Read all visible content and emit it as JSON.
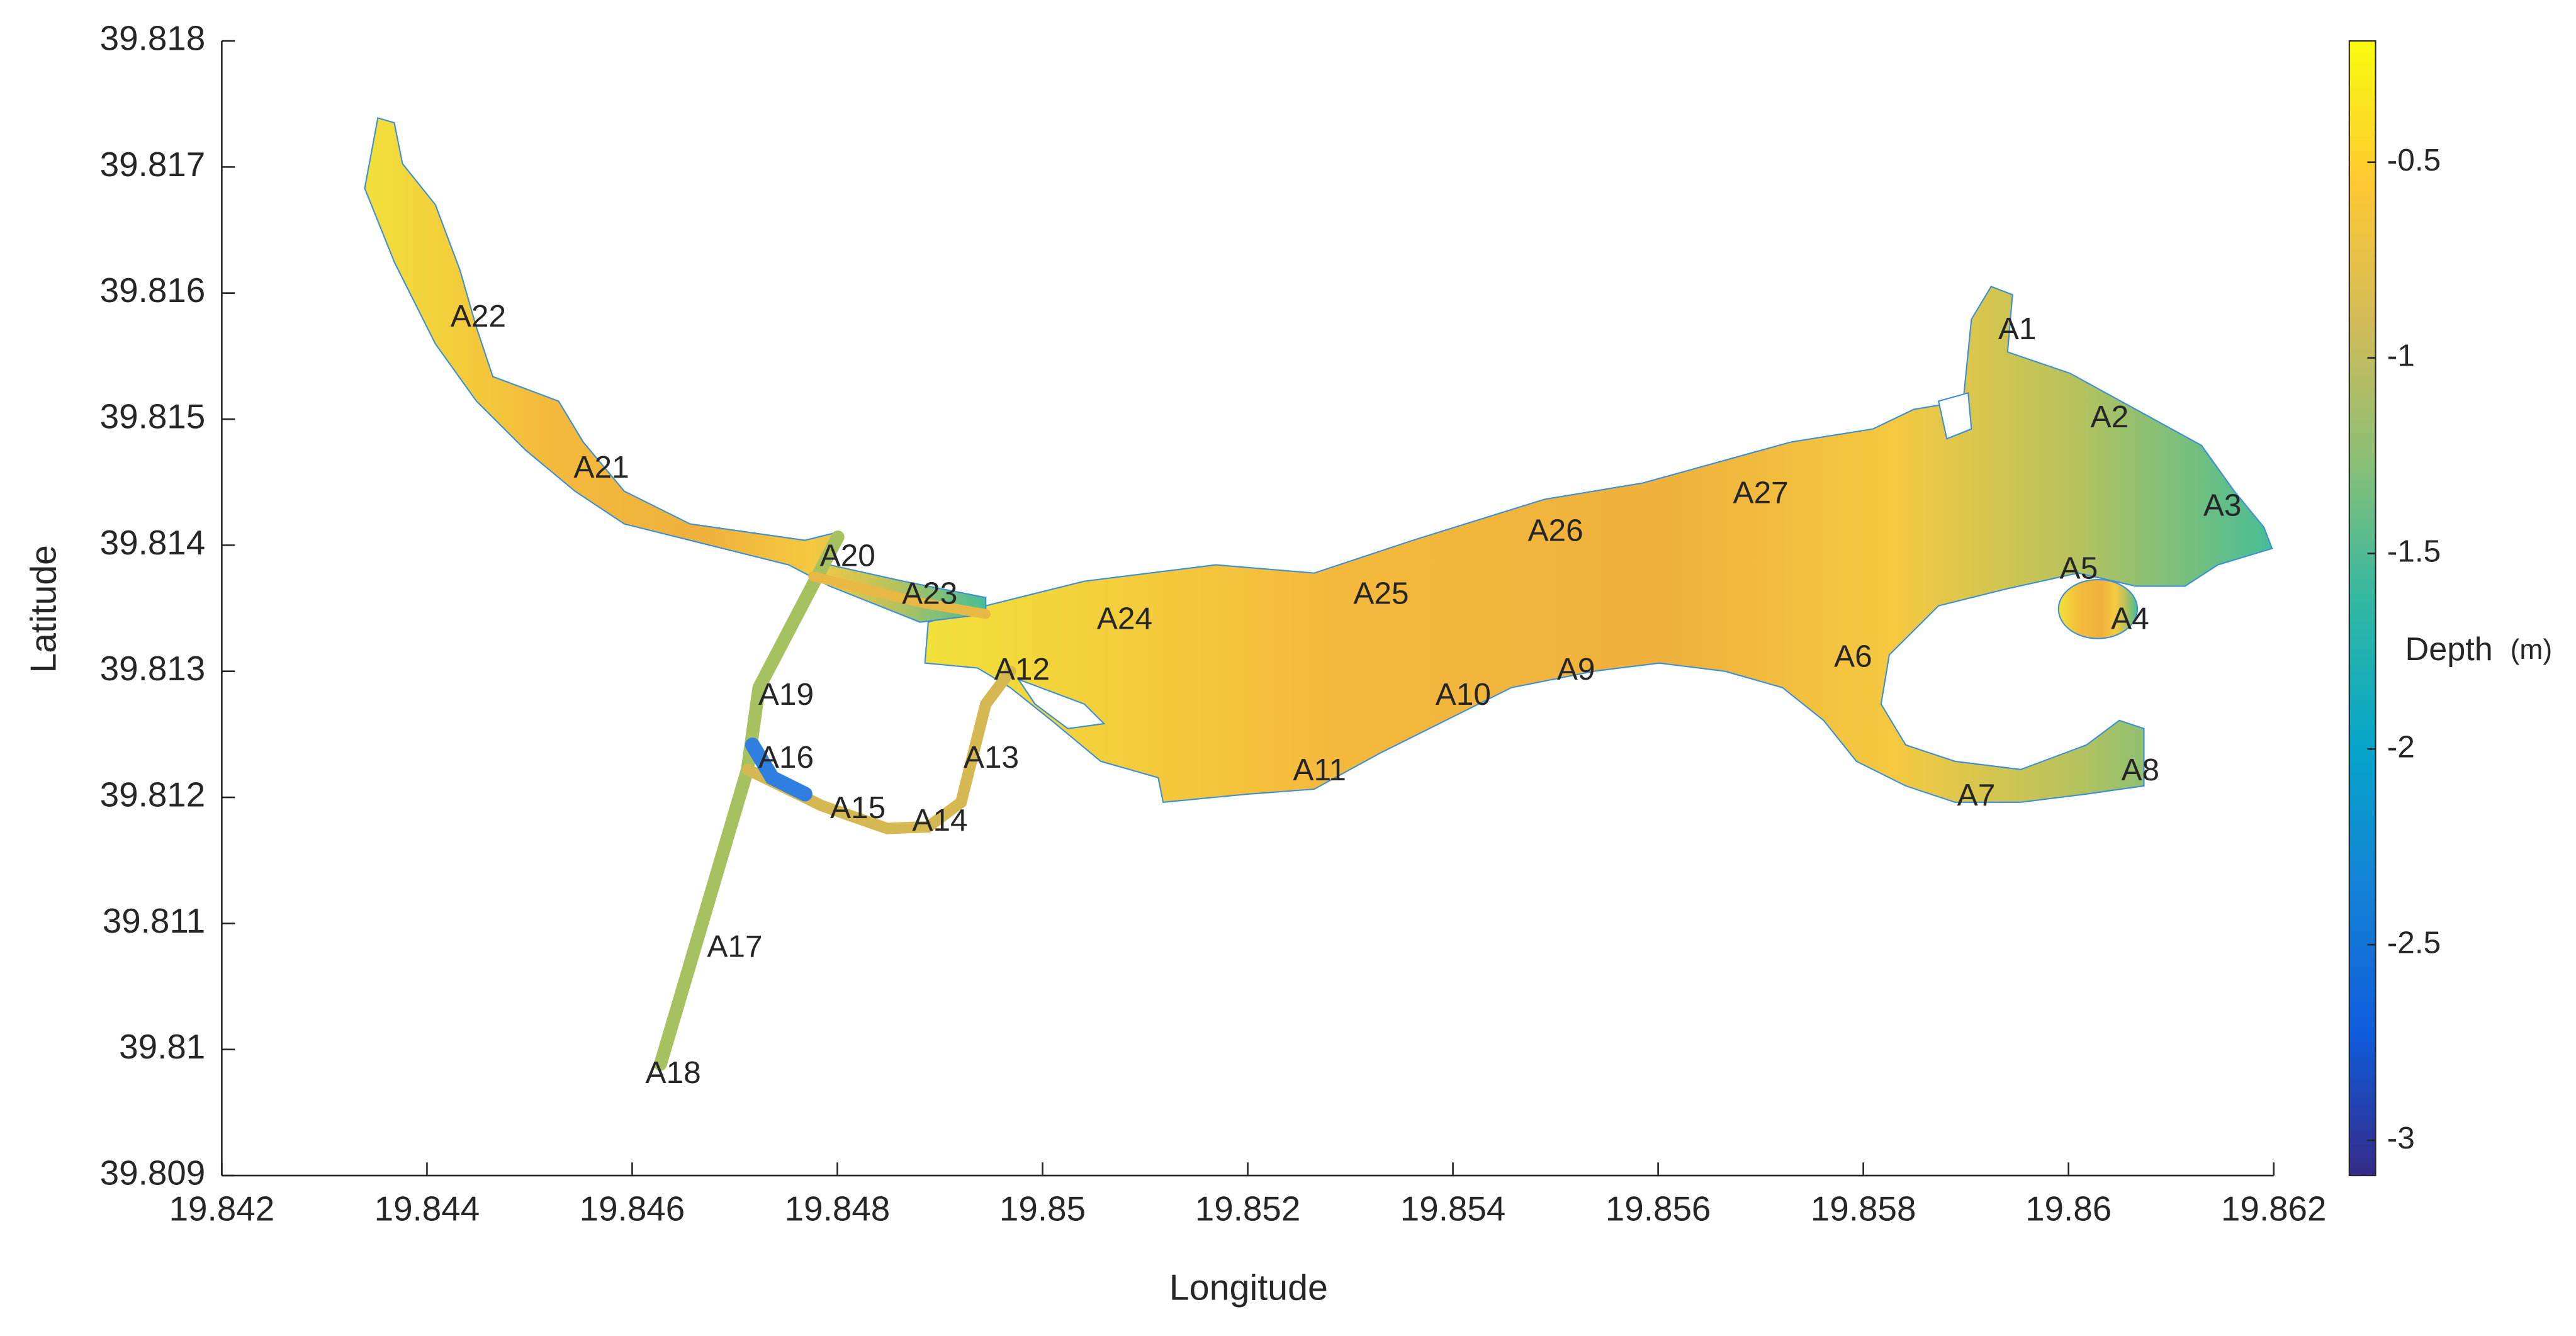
{
  "chart_data": {
    "type": "map",
    "x_label": "Longitude",
    "y_label": "Latitude",
    "xlim": [
      19.842,
      19.862
    ],
    "xticks": [
      19.842,
      19.844,
      19.846,
      19.848,
      19.85,
      19.852,
      19.854,
      19.856,
      19.858,
      19.86,
      19.862
    ],
    "ylim": [
      39.809,
      39.818
    ],
    "yticks": [
      39.809,
      39.81,
      39.811,
      39.812,
      39.813,
      39.814,
      39.815,
      39.816,
      39.817,
      39.818
    ],
    "labels": [
      "A1",
      "A2",
      "A3",
      "A4",
      "A5",
      "A6",
      "A7",
      "A8",
      "A9",
      "A10",
      "A11",
      "A12",
      "A13",
      "A14",
      "A15",
      "A16",
      "A17",
      "A18",
      "A19",
      "A20",
      "A21",
      "A22",
      "A23",
      "A24",
      "A25",
      "A26",
      "A27"
    ],
    "x": [
      19.8595,
      19.8604,
      19.8615,
      19.8606,
      19.8601,
      19.8579,
      19.8591,
      19.8607,
      19.8552,
      19.8541,
      19.8527,
      19.8498,
      19.8495,
      19.849,
      19.8482,
      19.8475,
      19.847,
      19.8464,
      19.8475,
      19.8481,
      19.8457,
      19.8445,
      19.8489,
      19.8508,
      19.8533,
      19.855,
      19.857
    ],
    "y": [
      39.8157,
      39.815,
      39.8143,
      39.8134,
      39.8138,
      39.8131,
      39.812,
      39.8122,
      39.813,
      39.8128,
      39.8122,
      39.813,
      39.8123,
      39.8118,
      39.8119,
      39.8123,
      39.8108,
      39.8098,
      39.8128,
      39.8139,
      39.8146,
      39.8158,
      39.8136,
      39.8134,
      39.8136,
      39.8141,
      39.8144
    ],
    "colorbar": {
      "label": "Depth",
      "unit": "(m)",
      "lim": [
        -3.09,
        -0.19
      ],
      "ticks": [
        -3,
        -2.5,
        -2,
        -1.5,
        -1,
        -0.5
      ],
      "colormap": [
        "#352a87",
        "#0f5cdd",
        "#1481d6",
        "#06a4ca",
        "#2eb7a4",
        "#87bf77",
        "#d1bb59",
        "#fec832",
        "#f9fb0e"
      ]
    }
  }
}
